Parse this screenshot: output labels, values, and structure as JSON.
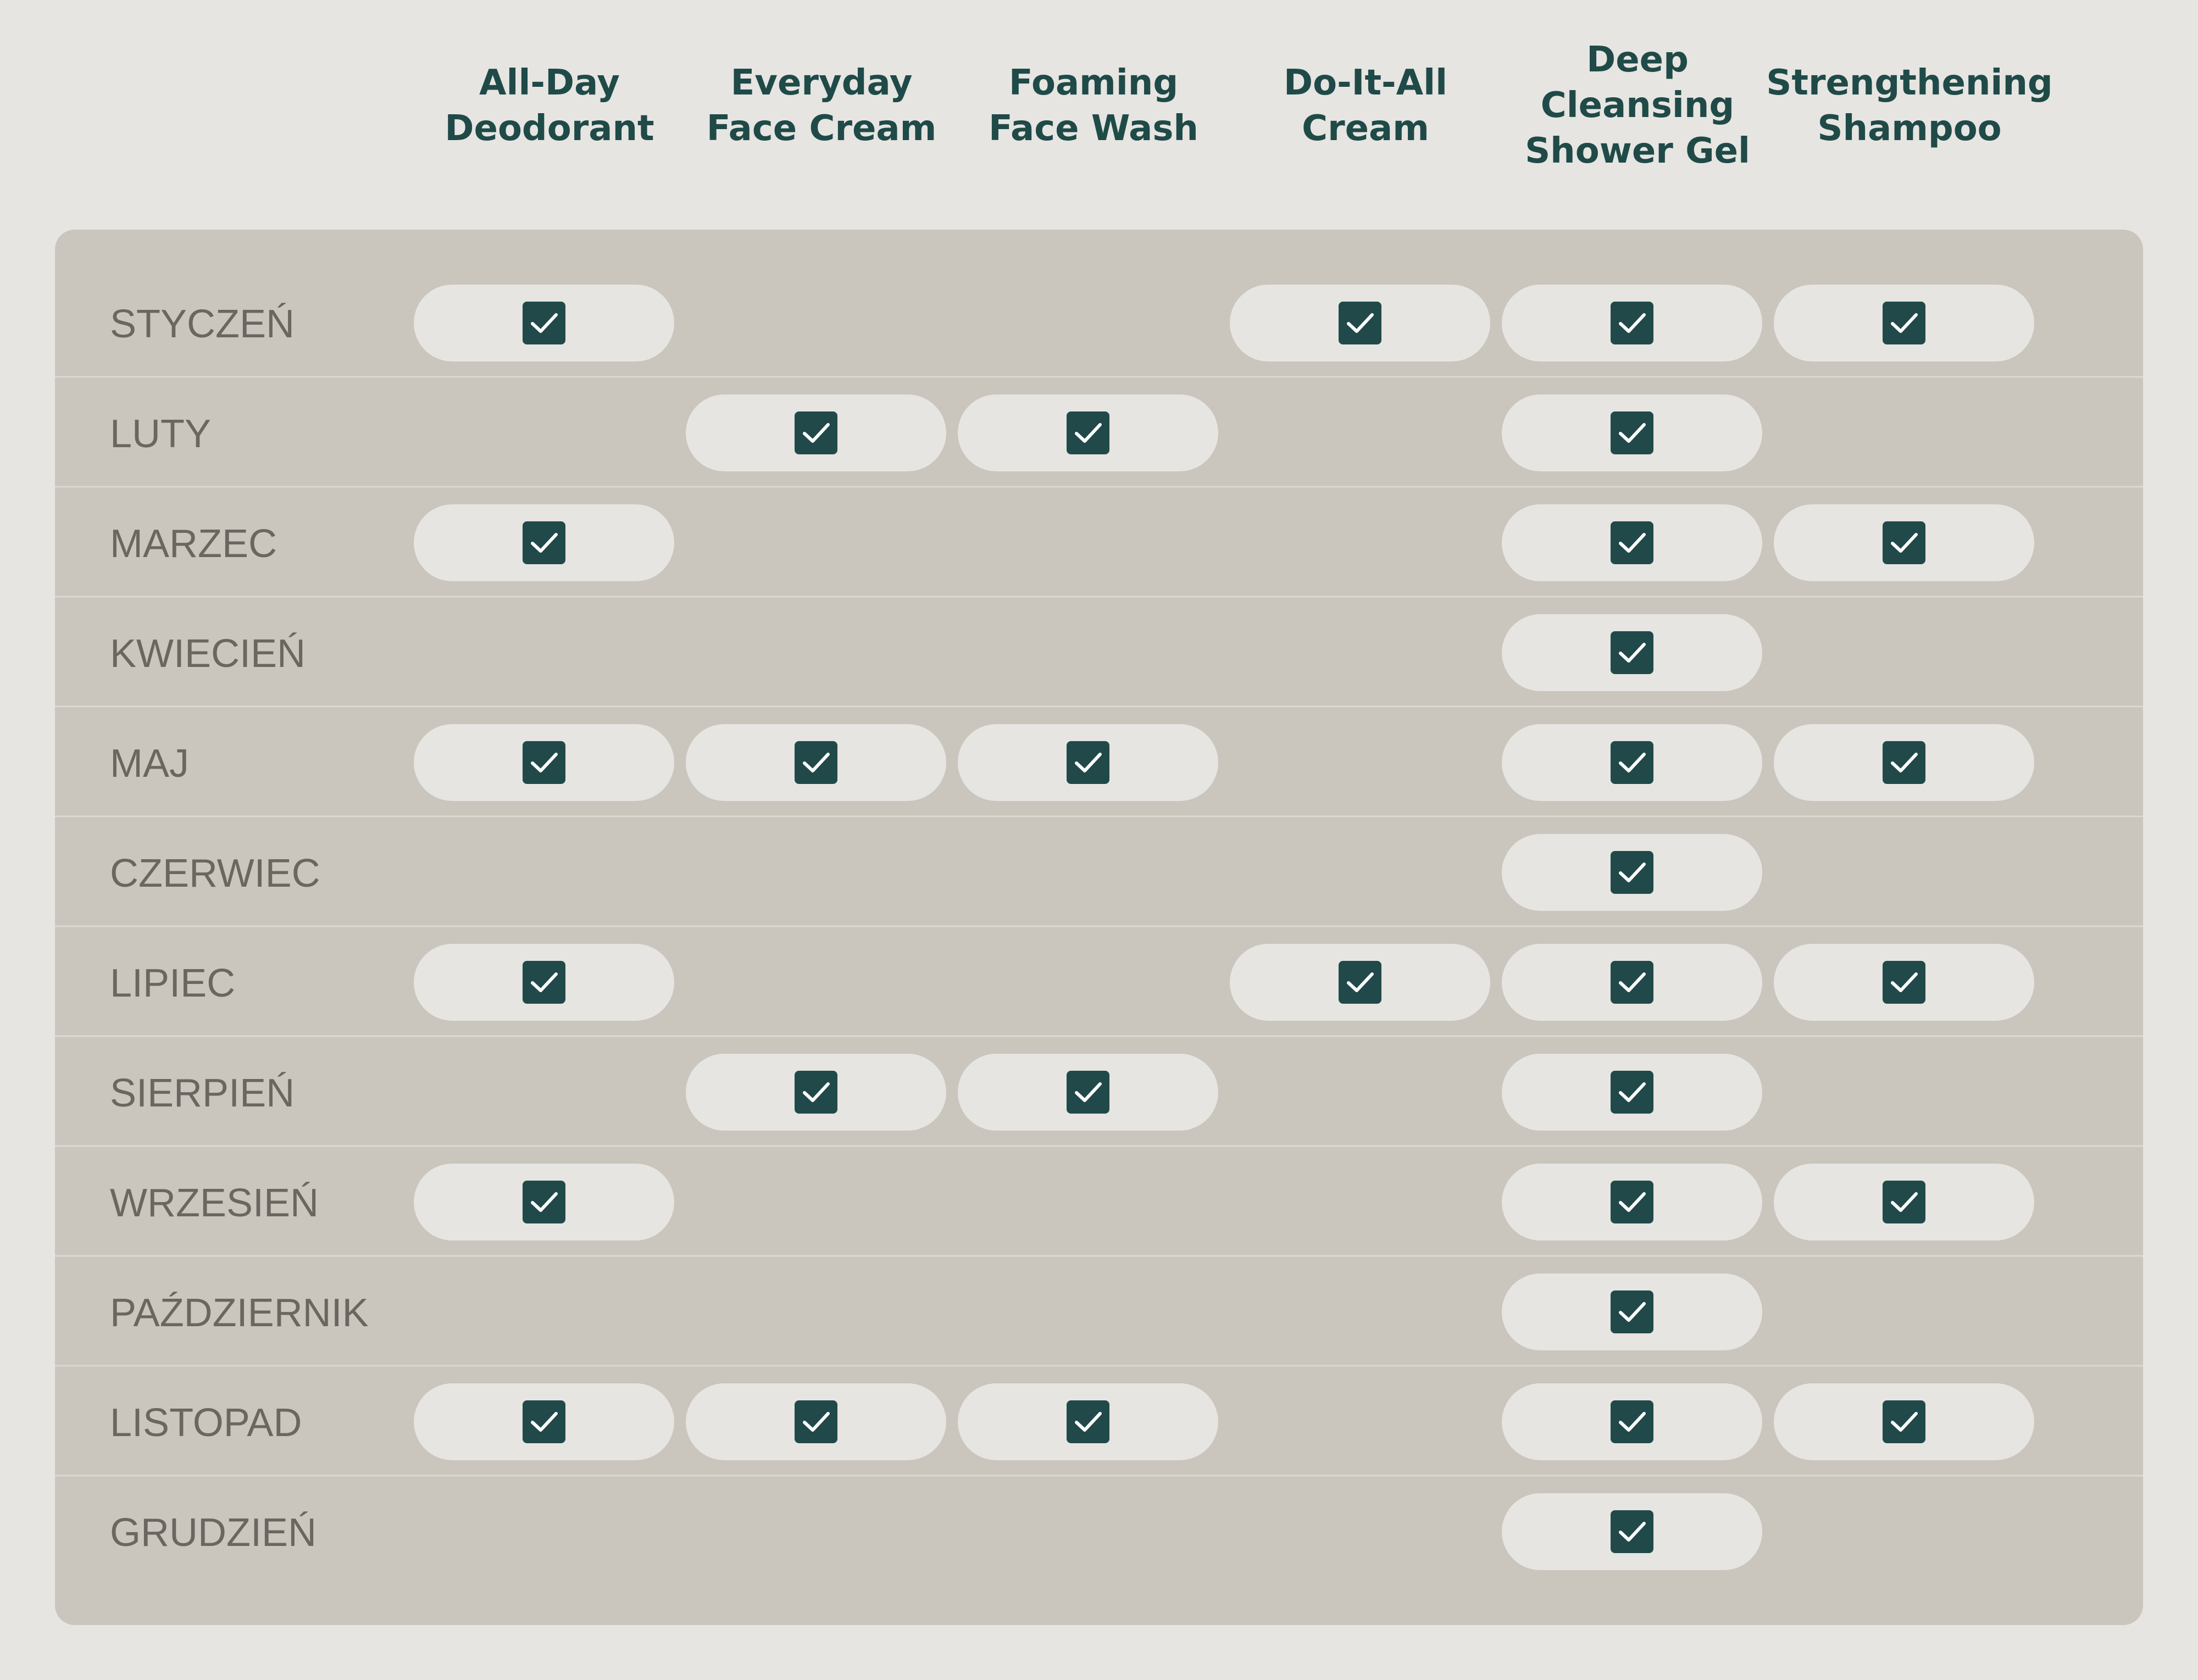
{
  "chart_data": {
    "type": "table",
    "columns": [
      [
        "All-Day",
        "Deodorant"
      ],
      [
        "Everyday",
        "Face Cream"
      ],
      [
        "Foaming",
        "Face Wash"
      ],
      [
        "Do-It-All",
        "Cream"
      ],
      [
        "Deep",
        "Cleansing",
        "Shower Gel"
      ],
      [
        "Strengthening",
        "Shampoo"
      ]
    ],
    "rows": [
      {
        "label": "STYCZEŃ",
        "values": [
          1,
          0,
          0,
          1,
          1,
          1
        ]
      },
      {
        "label": "LUTY",
        "values": [
          0,
          1,
          1,
          0,
          1,
          0
        ]
      },
      {
        "label": "MARZEC",
        "values": [
          1,
          0,
          0,
          0,
          1,
          1
        ]
      },
      {
        "label": "KWIECIEŃ",
        "values": [
          0,
          0,
          0,
          0,
          1,
          0
        ]
      },
      {
        "label": "MAJ",
        "values": [
          1,
          1,
          1,
          0,
          1,
          1
        ]
      },
      {
        "label": "CZERWIEC",
        "values": [
          0,
          0,
          0,
          0,
          1,
          0
        ]
      },
      {
        "label": "LIPIEC",
        "values": [
          1,
          0,
          0,
          1,
          1,
          1
        ]
      },
      {
        "label": "SIERPIEŃ",
        "values": [
          0,
          1,
          1,
          0,
          1,
          0
        ]
      },
      {
        "label": "WRZESIEŃ",
        "values": [
          1,
          0,
          0,
          0,
          1,
          1
        ]
      },
      {
        "label": "PAŹDZIERNIK",
        "values": [
          0,
          0,
          0,
          0,
          1,
          0
        ]
      },
      {
        "label": "LISTOPAD",
        "values": [
          1,
          1,
          1,
          0,
          1,
          1
        ]
      },
      {
        "label": "GRUDZIEŃ",
        "values": [
          0,
          0,
          0,
          0,
          1,
          0
        ]
      }
    ],
    "mark_icon": "check-icon",
    "colors": {
      "background": "#e6e5e1",
      "panel": "#cac5bd",
      "pill": "#e6e5e1",
      "check_box": "#21494a",
      "check_mark": "#ffffff",
      "header_text": "#1f4a48",
      "row_label_text": "#6b6660",
      "divider": "#dcd8d2"
    }
  }
}
